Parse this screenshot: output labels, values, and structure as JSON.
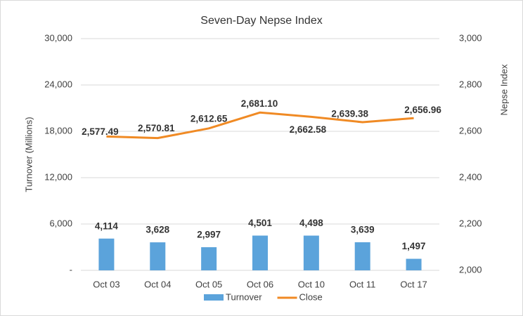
{
  "chart_data": {
    "type": "combo",
    "title": "Seven-Day Nepse Index",
    "y_label": "Turnover (Millions)",
    "y2_label": "Nepse Index",
    "categories": [
      "Oct 03",
      "Oct 04",
      "Oct 05",
      "Oct 06",
      "Oct 10",
      "Oct 11",
      "Oct 17"
    ],
    "series": [
      {
        "name": "Turnover",
        "type": "bar",
        "color": "#5ba3db",
        "values": [
          4114,
          3628,
          2997,
          4501,
          4498,
          3639,
          1497
        ],
        "value_labels": [
          "4,114",
          "3,628",
          "2,997",
          "4,501",
          "4,498",
          "3,639",
          "1,497"
        ]
      },
      {
        "name": "Close",
        "type": "line",
        "axis": "y2",
        "color": "#f08a24",
        "values": [
          2577.49,
          2570.81,
          2612.65,
          2681.1,
          2662.58,
          2639.38,
          2656.96
        ],
        "value_labels": [
          "2,577.49",
          "2,570.81",
          "2,612.65",
          "2,681.10",
          "2,662.58",
          "2,639.38",
          "2,656.96"
        ]
      }
    ],
    "ylim": [
      0,
      30000
    ],
    "yticks": [
      {
        "value": 0,
        "label": "-"
      },
      {
        "value": 6000,
        "label": "6,000"
      },
      {
        "value": 12000,
        "label": "12,000"
      },
      {
        "value": 18000,
        "label": "18,000"
      },
      {
        "value": 24000,
        "label": "24,000"
      },
      {
        "value": 30000,
        "label": "30,000"
      }
    ],
    "y2lim": [
      2000,
      3000
    ],
    "y2ticks": [
      {
        "value": 2000,
        "label": "2,000"
      },
      {
        "value": 2200,
        "label": "2,200"
      },
      {
        "value": 2400,
        "label": "2,400"
      },
      {
        "value": 2600,
        "label": "2,600"
      },
      {
        "value": 2800,
        "label": "2,800"
      },
      {
        "value": 3000,
        "label": "3,000"
      }
    ],
    "grid": true,
    "legend": "bottom"
  }
}
